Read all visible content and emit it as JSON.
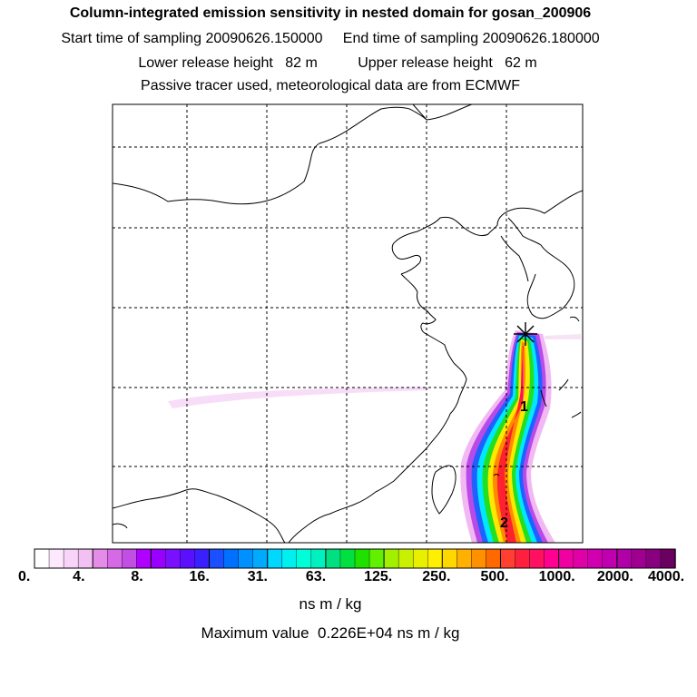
{
  "header": {
    "title": "Column-integrated emission sensitivity in nested domain for gosan_200906",
    "sampling_line": "Start time of sampling 20090626.150000     End time of sampling 20090626.180000",
    "release_line": "Lower release height   82 m          Upper release height   62 m",
    "tracer_line": "Passive tracer used, meteorological data are from ECMWF"
  },
  "map": {
    "trajectory_labels": [
      "1",
      "2"
    ],
    "release_marker": "star-icon"
  },
  "colorbar": {
    "tick_labels": [
      "0.",
      "4.",
      "8.",
      "16.",
      "31.",
      "63.",
      "125.",
      "250.",
      "500.",
      "1000.",
      "2000.",
      "4000."
    ],
    "colors": [
      "#ffffff",
      "#fde8fd",
      "#f8d4f8",
      "#f2c0f2",
      "#e48ce8",
      "#d66ae6",
      "#c24fe4",
      "#b000ff",
      "#9a00ff",
      "#7a10ff",
      "#5a10ff",
      "#3a20ff",
      "#1a50ff",
      "#0070ff",
      "#0090ff",
      "#00aaff",
      "#00d8ff",
      "#00f0f0",
      "#00ffd8",
      "#00f0c0",
      "#00e080",
      "#00e040",
      "#20e000",
      "#60f000",
      "#a0f000",
      "#c8f000",
      "#e8f000",
      "#fff000",
      "#ffd800",
      "#ffb000",
      "#ff9000",
      "#ff6a00",
      "#ff4030",
      "#ff2040",
      "#ff1060",
      "#ff0090",
      "#f000a0",
      "#e000a8",
      "#d000b0",
      "#c000b0",
      "#b000a8",
      "#a00090",
      "#880080",
      "#6a0060"
    ],
    "units": "ns m / kg",
    "max_value_text": "Maximum value  0.226E+04 ns m / kg"
  }
}
